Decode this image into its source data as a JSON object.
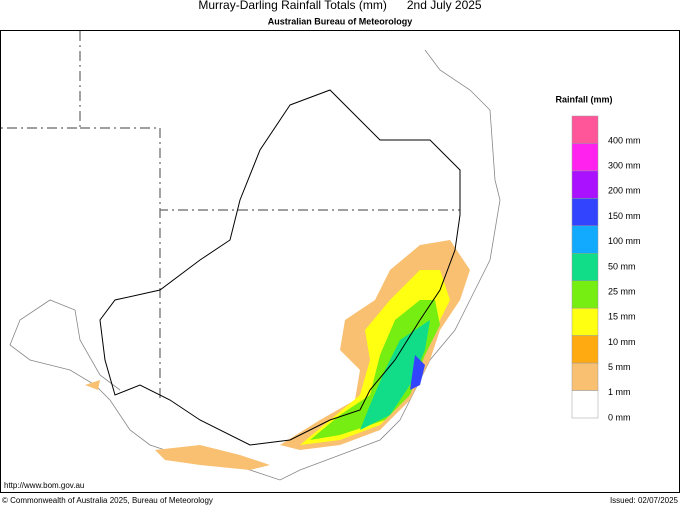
{
  "header": {
    "title": "Murray-Darling Rainfall Totals (mm)",
    "date": "2nd July 2025",
    "subtitle": "Australian Bureau of Meteorology"
  },
  "legend": {
    "title": "Rainfall (mm)",
    "labels": [
      "400 mm",
      "300 mm",
      "200 mm",
      "150 mm",
      "100 mm",
      "50 mm",
      "25 mm",
      "15 mm",
      "10 mm",
      "5 mm",
      "1 mm",
      "0 mm"
    ],
    "colors": [
      "#ff5599",
      "#ff22ee",
      "#aa11ff",
      "#3344ff",
      "#11aaff",
      "#11dd88",
      "#77ee11",
      "#ffff11",
      "#ffaa11",
      "#f8c070",
      "#ffffff"
    ]
  },
  "footer": {
    "url": "http://www.bom.gov.au",
    "copyright": "© Commonwealth of Australia 2025, Bureau of Meteorology",
    "issued": "Issued: 02/07/2025"
  }
}
